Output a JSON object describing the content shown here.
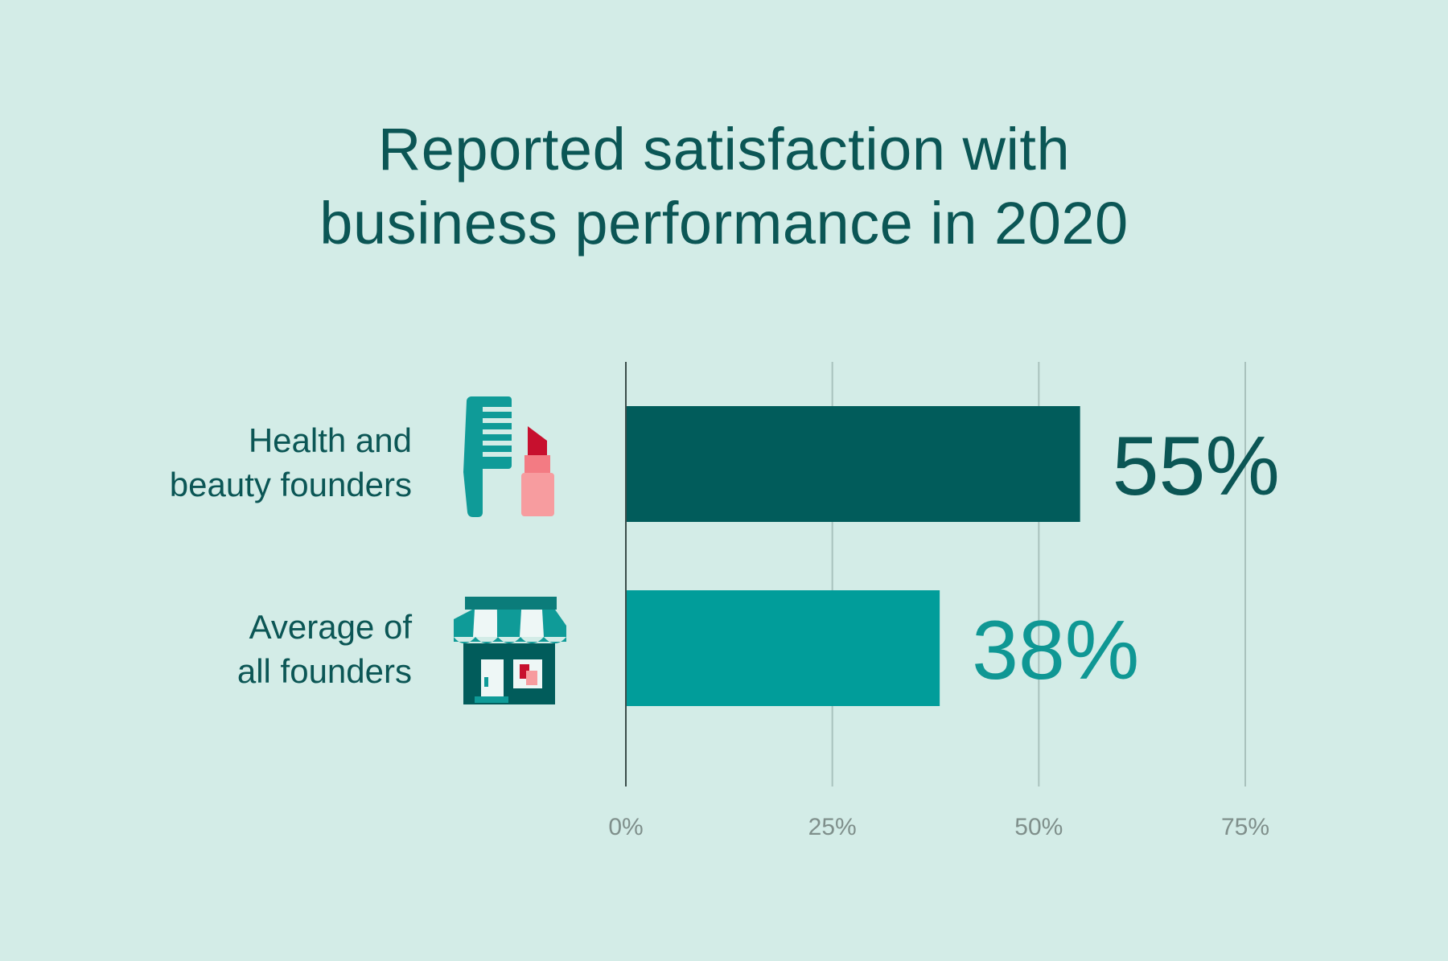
{
  "chart_data": {
    "type": "bar",
    "orientation": "horizontal",
    "title": [
      "Reported satisfaction with",
      "business performance in 2020"
    ],
    "categories": [
      [
        "Health and",
        "beauty founders"
      ],
      [
        "Average of",
        "all founders"
      ]
    ],
    "values": [
      55,
      38
    ],
    "data_labels": [
      "55%",
      "38%"
    ],
    "icons": [
      "comb-and-lipstick-icon",
      "storefront-icon"
    ],
    "colors": [
      "#015c5b",
      "#019d9a"
    ],
    "label_colors": [
      "#0b5655",
      "#0f9794"
    ],
    "xlim": [
      0,
      75
    ],
    "xticks": [
      0,
      25,
      50,
      75
    ],
    "xtick_labels": [
      "0%",
      "25%",
      "50%",
      "75%"
    ],
    "grid": true,
    "xlabel": "",
    "ylabel": ""
  }
}
